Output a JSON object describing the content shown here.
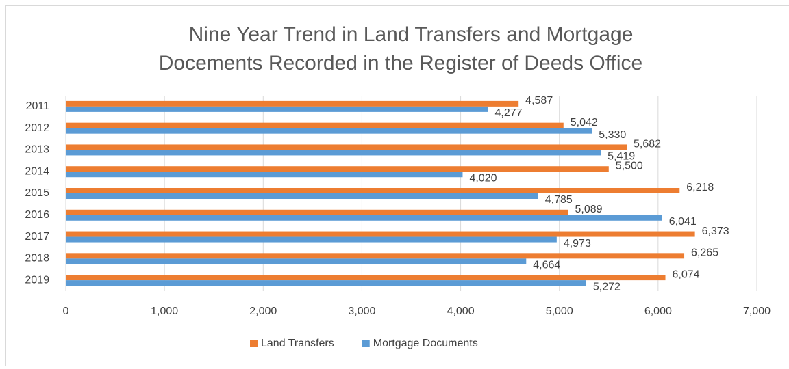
{
  "chart_data": {
    "type": "hbar",
    "title": [
      "Nine Year Trend in Land Transfers and Mortgage",
      "Docements Recorded in the Register of Deeds Office"
    ],
    "categories": [
      "2011",
      "2012",
      "2013",
      "2014",
      "2015",
      "2016",
      "2017",
      "2018",
      "2019"
    ],
    "series": [
      {
        "name": "Land Transfers",
        "color": "#ed7d31",
        "values": [
          4587,
          5042,
          5682,
          5500,
          6218,
          5089,
          6373,
          6265,
          6074
        ],
        "value_labels": [
          "4,587",
          "5,042",
          "5,682",
          "5,500",
          "6,218",
          "5,089",
          "6,373",
          "6,265",
          "6,074"
        ]
      },
      {
        "name": "Mortgage Documents",
        "color": "#5b9bd5",
        "values": [
          4277,
          5330,
          5419,
          4020,
          4785,
          6041,
          4973,
          4664,
          5272
        ],
        "value_labels": [
          "4,277",
          "5,330",
          "5,419",
          "4,020",
          "4,785",
          "6,041",
          "4,973",
          "4,664",
          "5,272"
        ]
      }
    ],
    "xlim": [
      0,
      7000
    ],
    "xticks": [
      0,
      {
        "value": 1000,
        "label": "1,000"
      },
      {
        "value": 2000,
        "label": "2,000"
      },
      {
        "value": 3000,
        "label": "3,000"
      },
      {
        "value": 4000,
        "label": "4,000"
      },
      {
        "value": 5000,
        "label": "5,000"
      },
      {
        "value": 6000,
        "label": "6,000"
      },
      {
        "value": 7000,
        "label": "7,000"
      }
    ],
    "grid": true,
    "legend": "bottom"
  }
}
